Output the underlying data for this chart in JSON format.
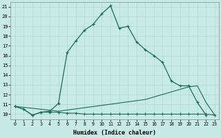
{
  "xlabel": "Humidex (Indice chaleur)",
  "bg_color": "#c8eae4",
  "line_color": "#1a6b5a",
  "grid_color": "#b0d8d0",
  "xlim": [
    -0.5,
    23.5
  ],
  "ylim": [
    9.5,
    21.5
  ],
  "line_main_x": [
    0,
    1,
    2,
    3,
    4,
    5,
    6,
    7,
    8,
    9,
    10,
    11,
    12,
    13,
    14,
    15,
    16,
    17,
    18,
    19,
    20,
    21,
    22
  ],
  "line_main_y": [
    10.8,
    10.5,
    9.9,
    10.2,
    10.3,
    11.1,
    16.3,
    17.5,
    18.6,
    19.2,
    20.3,
    21.1,
    18.8,
    19.0,
    17.4,
    16.6,
    16.0,
    15.3,
    13.4,
    12.9,
    12.9,
    11.2,
    9.9
  ],
  "line_flat_x": [
    0,
    1,
    2,
    3,
    4,
    5,
    6,
    7,
    8,
    9,
    10,
    11,
    12,
    13,
    14,
    15,
    16,
    17,
    18,
    19,
    20,
    21,
    22,
    23
  ],
  "line_flat_y": [
    10.8,
    10.5,
    9.9,
    10.2,
    10.2,
    10.2,
    10.1,
    10.1,
    10.0,
    10.0,
    10.0,
    10.0,
    10.0,
    10.0,
    10.0,
    10.0,
    10.0,
    10.0,
    10.0,
    10.0,
    10.0,
    10.0,
    10.0,
    9.9
  ],
  "line_rise_x": [
    0,
    5,
    10,
    15,
    20,
    21,
    22,
    23
  ],
  "line_rise_y": [
    10.8,
    10.3,
    10.9,
    11.5,
    12.8,
    12.9,
    11.2,
    9.9
  ],
  "xticks": [
    0,
    1,
    2,
    3,
    4,
    5,
    6,
    7,
    8,
    9,
    10,
    11,
    12,
    13,
    14,
    15,
    16,
    17,
    18,
    19,
    20,
    21,
    22,
    23
  ],
  "yticks": [
    10,
    11,
    12,
    13,
    14,
    15,
    16,
    17,
    18,
    19,
    20,
    21
  ],
  "figsize": [
    3.2,
    2.0
  ],
  "dpi": 100
}
